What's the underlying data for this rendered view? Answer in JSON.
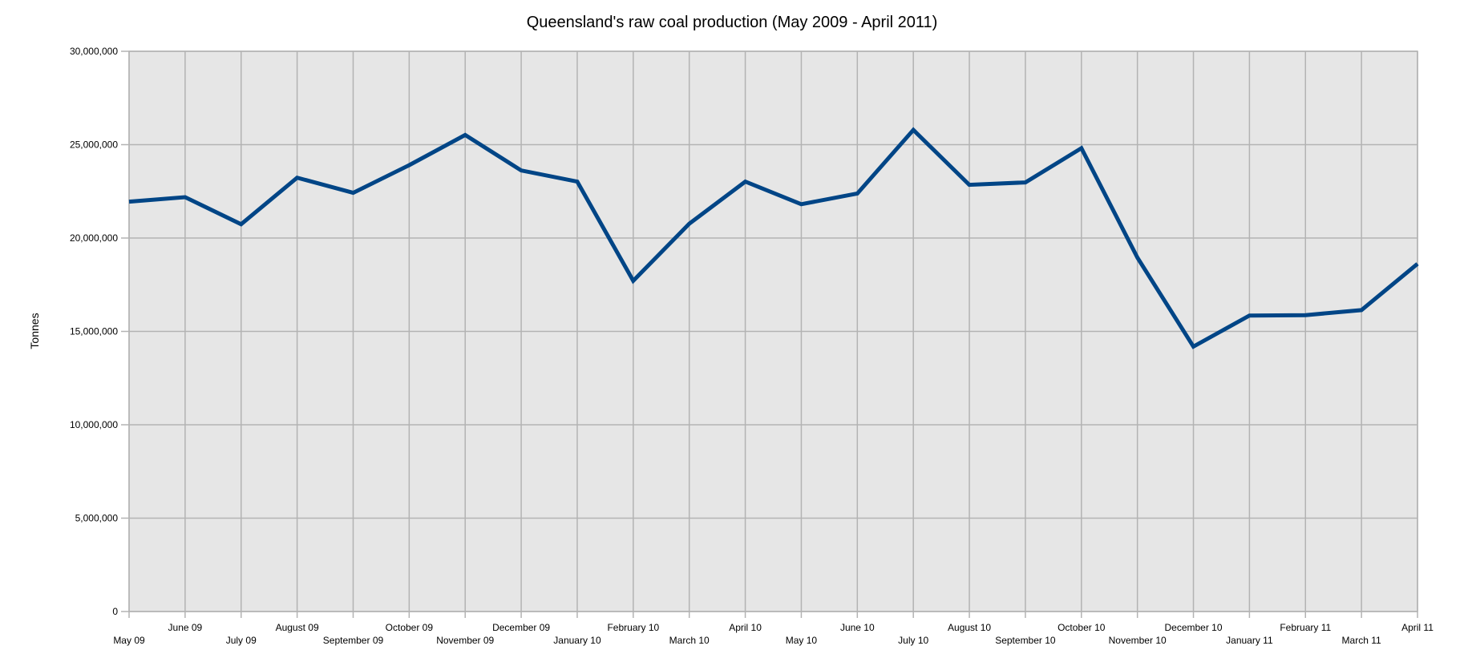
{
  "chart_data": {
    "type": "line",
    "title": "Queensland's raw coal production (May 2009 - April 2011)",
    "xlabel": "",
    "ylabel": "Tonnes",
    "ylim": [
      0,
      30000000
    ],
    "yticks": [
      0,
      5000000,
      10000000,
      15000000,
      20000000,
      25000000,
      30000000
    ],
    "ytick_labels": [
      "0",
      "5,000,000",
      "10,000,000",
      "15,000,000",
      "20,000,000",
      "25,000,000",
      "30,000,000"
    ],
    "grid": true,
    "legend": "none",
    "line_color": "#004586",
    "plot_background": "#e6e6e6",
    "categories": [
      "May 09",
      "June 09",
      "July 09",
      "August 09",
      "September 09",
      "October 09",
      "November 09",
      "December 09",
      "January 10",
      "February 10",
      "March 10",
      "April 10",
      "May 10",
      "June 10",
      "July 10",
      "August 10",
      "September 10",
      "October 10",
      "November 10",
      "December 10",
      "January 11",
      "February 11",
      "March 11",
      "April 11"
    ],
    "series": [
      {
        "name": "Tonnes",
        "values": [
          21950000,
          22190000,
          20740000,
          23230000,
          22420000,
          23900000,
          25520000,
          23620000,
          23020000,
          17710000,
          20770000,
          23020000,
          21810000,
          22380000,
          25790000,
          22850000,
          22980000,
          24810000,
          18950000,
          14190000,
          15850000,
          15870000,
          16140000,
          18620000
        ]
      }
    ]
  }
}
